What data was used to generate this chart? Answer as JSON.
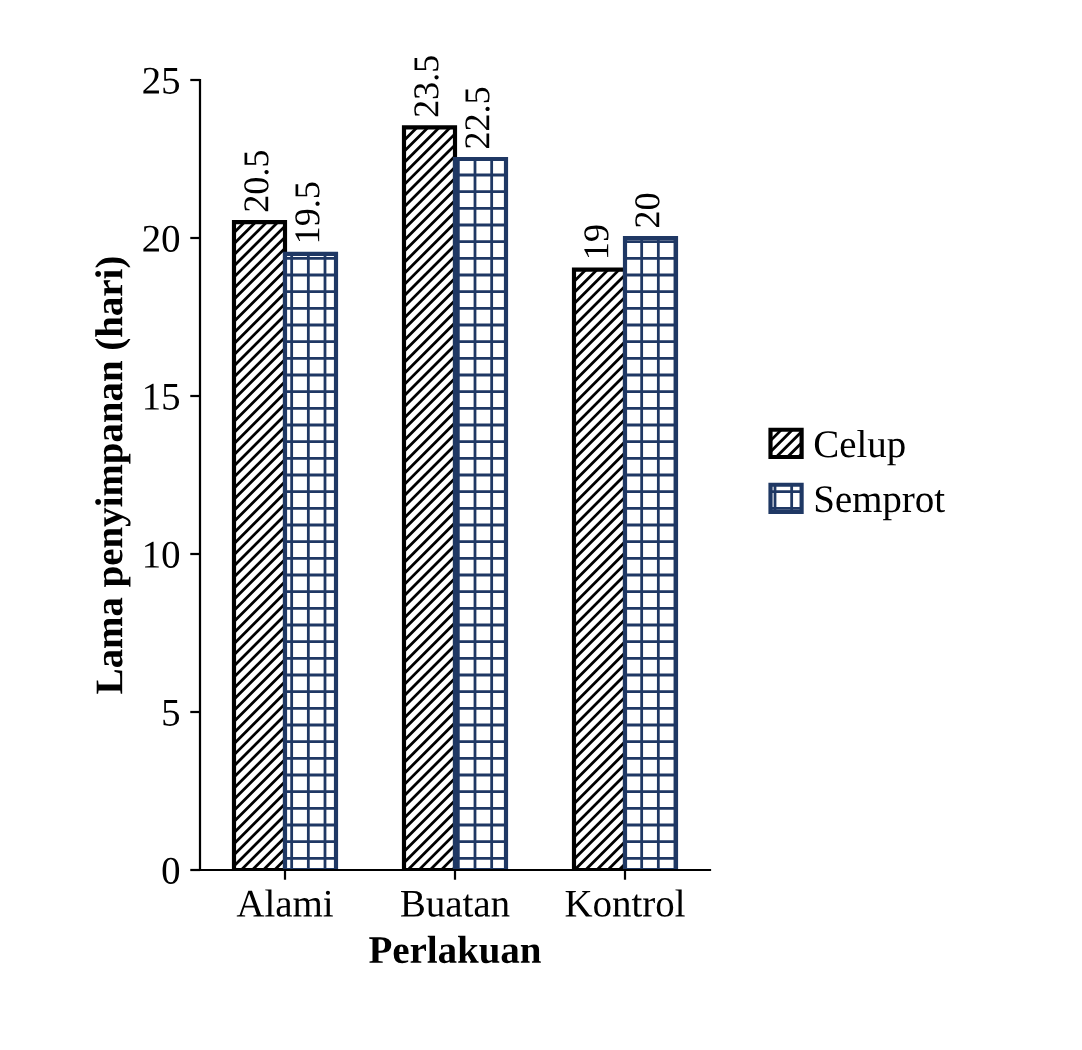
{
  "chart_data": {
    "type": "bar",
    "xlabel": "Perlakuan",
    "ylabel": "Lama penyimpanan (hari)",
    "categories": [
      "Alami",
      "Buatan",
      "Kontrol"
    ],
    "series": [
      {
        "name": "Celup",
        "color": "#000000",
        "values": [
          20.5,
          23.5,
          19
        ]
      },
      {
        "name": "Semprot",
        "color": "#1f3864",
        "values": [
          19.5,
          22.5,
          20
        ]
      }
    ],
    "ylim": [
      0,
      25
    ],
    "yticks": [
      0,
      5,
      10,
      15,
      20,
      25
    ],
    "grid": false,
    "legend": "right",
    "data_labels": true
  }
}
